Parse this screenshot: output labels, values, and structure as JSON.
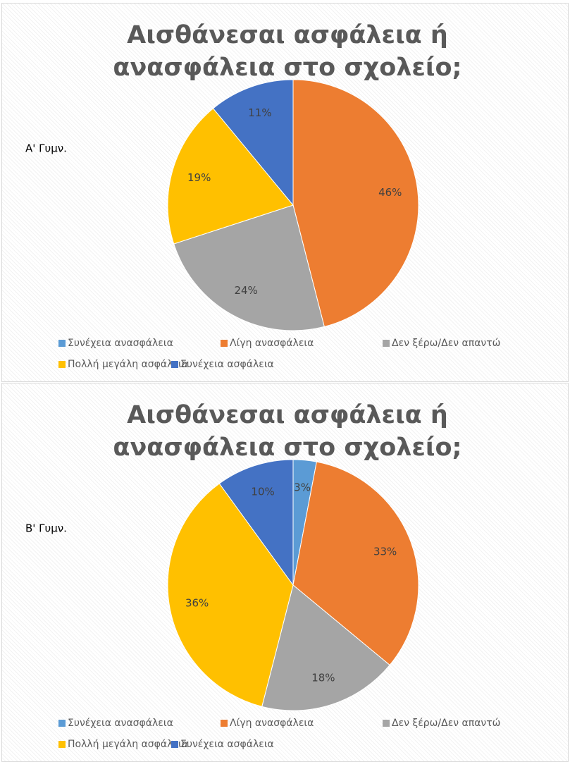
{
  "chart_data": [
    {
      "type": "pie",
      "title": "Αισθάνεσαι ασφάλεια ή ανασφάλεια στο σχολείο; (%)",
      "annotation": "Α' Γυμν.",
      "categories": [
        "Συνέχεια ανασφάλεια",
        "Λίγη ανασφάλεια",
        "Δεν ξέρω/Δεν απαντώ",
        "Πολλή μεγάλη ασφάλεια",
        "Συνέχεια ασφάλεια"
      ],
      "values": [
        0,
        46,
        24,
        19,
        11
      ],
      "value_labels": [
        "0%",
        "46%",
        "24%",
        "19%",
        "11%"
      ],
      "colors": [
        "#5b9bd5",
        "#ed7d31",
        "#a5a5a5",
        "#ffc000",
        "#4472c4"
      ],
      "legend": "bottom"
    },
    {
      "type": "pie",
      "title": "Αισθάνεσαι ασφάλεια ή ανασφάλεια στο σχολείο; (%)",
      "annotation": "Β' Γυμν.",
      "categories": [
        "Συνέχεια ανασφάλεια",
        "Λίγη ανασφάλεια",
        "Δεν ξέρω/Δεν απαντώ",
        "Πολλή μεγάλη ασφάλεια",
        "Συνέχεια ασφάλεια"
      ],
      "values": [
        3,
        33,
        18,
        36,
        10
      ],
      "value_labels": [
        "3%",
        "33%",
        "18%",
        "36%",
        "10%"
      ],
      "colors": [
        "#5b9bd5",
        "#ed7d31",
        "#a5a5a5",
        "#ffc000",
        "#4472c4"
      ],
      "legend": "bottom"
    }
  ]
}
